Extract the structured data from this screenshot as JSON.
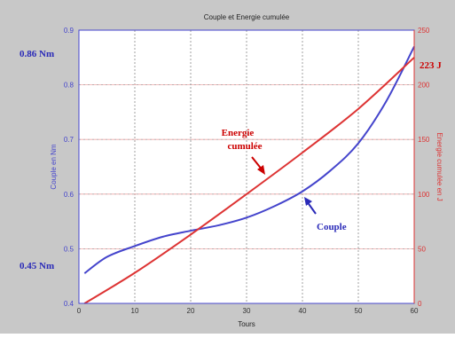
{
  "chart_data": {
    "type": "line",
    "title": "Couple et Energie cumulée",
    "xlabel": "Tours",
    "ylabel_left": "Couple en Nm",
    "ylabel_right": "Energie cumulée en J",
    "xlim": [
      0,
      60
    ],
    "ylim_left": [
      0.4,
      0.9
    ],
    "ylim_right": [
      0,
      250
    ],
    "x_ticks": [
      "0",
      "10",
      "20",
      "30",
      "40",
      "50",
      "60"
    ],
    "y_left_ticks": [
      "0.4",
      "0.5",
      "0.6",
      "0.7",
      "0.8",
      "0.9"
    ],
    "y_right_ticks": [
      "0",
      "50",
      "100",
      "150",
      "200",
      "250"
    ],
    "grid": true,
    "series": [
      {
        "name": "Couple",
        "axis": "left",
        "color": "#4444cc",
        "x": [
          1,
          5,
          10,
          15,
          20,
          25,
          30,
          35,
          40,
          45,
          50,
          55,
          60
        ],
        "y": [
          0.455,
          0.485,
          0.505,
          0.522,
          0.533,
          0.543,
          0.557,
          0.578,
          0.605,
          0.643,
          0.693,
          0.77,
          0.87
        ]
      },
      {
        "name": "Energie cumulée",
        "axis": "right",
        "color": "#dd3333",
        "x": [
          1,
          10,
          20,
          30,
          40,
          50,
          60
        ],
        "y": [
          0,
          28,
          63,
          100,
          138,
          178,
          225
        ]
      }
    ],
    "annotations": [
      {
        "text": "0.86 Nm",
        "color": "#2a2ab8"
      },
      {
        "text": "0.45 Nm",
        "color": "#2a2ab8"
      },
      {
        "text": "223 J",
        "color": "#cc0000"
      },
      {
        "text": "Energie",
        "color": "#cc0000"
      },
      {
        "text": "cumulée",
        "color": "#cc0000"
      },
      {
        "text": "Couple",
        "color": "#2a2ab8"
      }
    ]
  }
}
